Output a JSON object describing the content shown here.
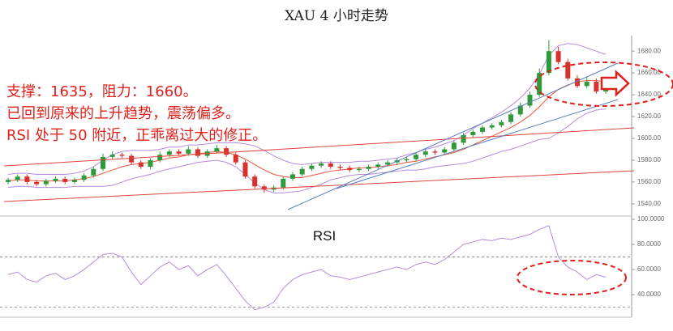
{
  "chart_data": [
    {
      "type": "candlestick",
      "title": "XAU 4 小时走势",
      "annotations": [
        "支撑：1635，阻力：1660。",
        "已回到原来的上升趋势，震荡偏多。",
        "RSI 处于 50 附近，正乖离过大的修正。"
      ],
      "up_color": "#2e9a3a",
      "down_color": "#d9312b",
      "ylim": [
        1531,
        1692
      ],
      "yticks": [
        {
          "value": 1540,
          "label": "1540.00"
        },
        {
          "value": 1560,
          "label": "1560.00"
        },
        {
          "value": 1580,
          "label": "1580.00"
        },
        {
          "value": 1600,
          "label": "1600.00"
        },
        {
          "value": 1620,
          "label": "1620.00"
        },
        {
          "value": 1640,
          "label": "1640.00"
        },
        {
          "value": 1660,
          "label": "1660.00"
        },
        {
          "value": 1680,
          "label": "1680.00"
        }
      ],
      "open": [
        1560,
        1562,
        1565,
        1560,
        1558,
        1561,
        1563,
        1560,
        1562,
        1566,
        1572,
        1583,
        1585,
        1584,
        1578,
        1574,
        1580,
        1585,
        1588,
        1586,
        1590,
        1584,
        1588,
        1591,
        1585,
        1578,
        1565,
        1556,
        1553,
        1555,
        1563,
        1567,
        1572,
        1575,
        1577,
        1574,
        1573,
        1571,
        1572,
        1574,
        1576,
        1578,
        1580,
        1581,
        1585,
        1588,
        1587,
        1590,
        1596,
        1603,
        1606,
        1610,
        1612,
        1615,
        1622,
        1630,
        1640,
        1660,
        1680,
        1670,
        1655,
        1648,
        1652,
        1643
      ],
      "high": [
        1564,
        1567,
        1567,
        1562,
        1563,
        1565,
        1565,
        1564,
        1568,
        1574,
        1586,
        1588,
        1587,
        1586,
        1580,
        1582,
        1588,
        1590,
        1590,
        1593,
        1592,
        1590,
        1594,
        1593,
        1587,
        1580,
        1567,
        1558,
        1557,
        1565,
        1569,
        1574,
        1577,
        1579,
        1579,
        1576,
        1575,
        1574,
        1576,
        1578,
        1580,
        1582,
        1583,
        1587,
        1590,
        1590,
        1592,
        1598,
        1605,
        1608,
        1612,
        1614,
        1617,
        1624,
        1633,
        1643,
        1664,
        1690,
        1684,
        1673,
        1658,
        1656,
        1655,
        1649
      ],
      "low": [
        1558,
        1560,
        1558,
        1556,
        1556,
        1559,
        1558,
        1558,
        1560,
        1564,
        1570,
        1581,
        1582,
        1576,
        1572,
        1572,
        1578,
        1583,
        1584,
        1584,
        1582,
        1582,
        1586,
        1583,
        1576,
        1563,
        1554,
        1550,
        1551,
        1553,
        1561,
        1565,
        1570,
        1573,
        1572,
        1571,
        1569,
        1569,
        1570,
        1572,
        1574,
        1576,
        1578,
        1579,
        1583,
        1585,
        1585,
        1588,
        1594,
        1601,
        1604,
        1608,
        1610,
        1613,
        1620,
        1628,
        1638,
        1658,
        1668,
        1653,
        1646,
        1646,
        1641,
        1641
      ],
      "close": [
        1562,
        1565,
        1560,
        1558,
        1561,
        1563,
        1560,
        1562,
        1566,
        1572,
        1583,
        1585,
        1584,
        1578,
        1574,
        1580,
        1585,
        1588,
        1586,
        1590,
        1584,
        1588,
        1591,
        1585,
        1578,
        1565,
        1556,
        1553,
        1555,
        1563,
        1567,
        1572,
        1575,
        1577,
        1574,
        1573,
        1571,
        1572,
        1574,
        1576,
        1578,
        1580,
        1581,
        1585,
        1588,
        1587,
        1590,
        1596,
        1603,
        1606,
        1610,
        1612,
        1615,
        1622,
        1630,
        1640,
        1660,
        1680,
        1670,
        1655,
        1648,
        1652,
        1643,
        1646
      ],
      "overlays": [
        {
          "color": "#b48be0",
          "values": [
            1567,
            1568,
            1568,
            1567,
            1567,
            1567,
            1567,
            1568,
            1570,
            1574,
            1580,
            1585,
            1588,
            1589,
            1589,
            1589,
            1590,
            1592,
            1592,
            1594,
            1594,
            1595,
            1596,
            1596,
            1596,
            1595,
            1593,
            1589,
            1584,
            1580,
            1577,
            1576,
            1577,
            1578,
            1578,
            1578,
            1578,
            1579,
            1579,
            1580,
            1581,
            1582,
            1585,
            1587,
            1590,
            1592,
            1595,
            1598,
            1603,
            1609,
            1614,
            1619,
            1624,
            1630,
            1637,
            1646,
            1659,
            1676,
            1685,
            1687,
            1686,
            1683,
            1680,
            1677
          ]
        },
        {
          "color": "#e8553f",
          "values": [
            1561,
            1562,
            1562,
            1561,
            1561,
            1561,
            1561,
            1562,
            1563,
            1565,
            1568,
            1571,
            1574,
            1576,
            1577,
            1578,
            1580,
            1582,
            1583,
            1585,
            1586,
            1587,
            1588,
            1587,
            1585,
            1581,
            1576,
            1571,
            1567,
            1565,
            1564,
            1564,
            1566,
            1568,
            1570,
            1571,
            1572,
            1573,
            1573,
            1574,
            1575,
            1576,
            1578,
            1579,
            1581,
            1583,
            1585,
            1587,
            1590,
            1594,
            1598,
            1602,
            1606,
            1610,
            1615,
            1621,
            1629,
            1638,
            1645,
            1649,
            1652,
            1653,
            1653,
            1652
          ]
        },
        {
          "color": "#b48be0",
          "values": [
            1555,
            1556,
            1556,
            1555,
            1555,
            1555,
            1555,
            1556,
            1556,
            1556,
            1556,
            1557,
            1560,
            1563,
            1565,
            1567,
            1570,
            1572,
            1574,
            1576,
            1578,
            1579,
            1580,
            1578,
            1574,
            1567,
            1559,
            1553,
            1550,
            1550,
            1551,
            1552,
            1555,
            1558,
            1562,
            1564,
            1566,
            1567,
            1567,
            1568,
            1569,
            1570,
            1571,
            1571,
            1572,
            1574,
            1575,
            1576,
            1577,
            1579,
            1582,
            1585,
            1588,
            1590,
            1593,
            1596,
            1599,
            1600,
            1605,
            1611,
            1618,
            1623,
            1626,
            1627
          ]
        }
      ]
    },
    {
      "type": "line",
      "title": "RSI",
      "color": "#b48be0",
      "ylim": [
        22,
        100
      ],
      "yticks": [
        {
          "value": 40,
          "label": "40.0000"
        },
        {
          "value": 60,
          "label": "60.0000"
        },
        {
          "value": 80,
          "label": "80.0000"
        },
        {
          "value": 100,
          "label": "100.0000"
        }
      ],
      "reference_lines": [
        70,
        30
      ],
      "values": [
        56,
        58,
        52,
        50,
        55,
        57,
        52,
        55,
        60,
        66,
        72,
        73,
        70,
        58,
        48,
        55,
        62,
        66,
        60,
        63,
        55,
        60,
        64,
        55,
        45,
        35,
        28,
        30,
        34,
        45,
        52,
        56,
        58,
        60,
        55,
        54,
        52,
        54,
        56,
        58,
        60,
        62,
        60,
        64,
        66,
        64,
        68,
        74,
        80,
        82,
        84,
        83,
        85,
        84,
        86,
        88,
        92,
        95,
        70,
        62,
        58,
        52,
        56,
        54
      ]
    }
  ]
}
